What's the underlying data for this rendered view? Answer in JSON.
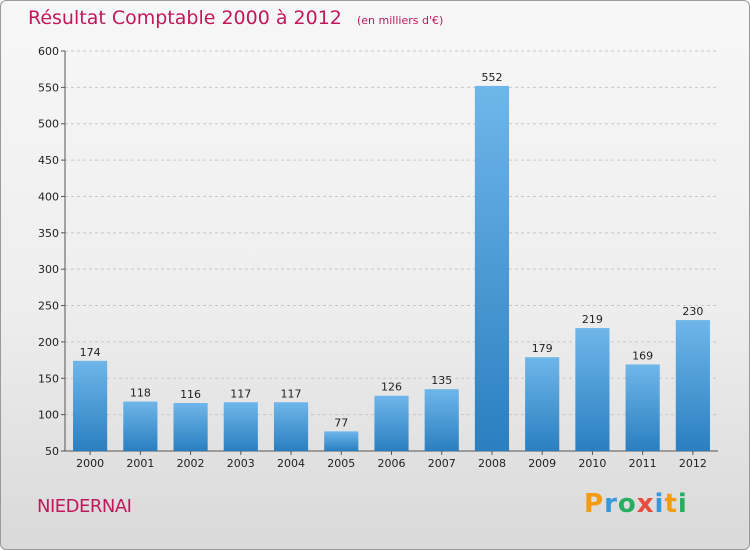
{
  "header": {
    "title": "Résultat Comptable 2000 à 2012",
    "unit": "(en milliers d'€)"
  },
  "footer": {
    "commune": "NIEDERNAI",
    "logo_letters": [
      "P",
      "r",
      "o",
      "x",
      "i",
      "t",
      "i"
    ],
    "logo_colors": [
      "#f39c12",
      "#3498db",
      "#27ae60",
      "#e74c3c",
      "#3498db",
      "#f39c12",
      "#27ae60"
    ]
  },
  "colors": {
    "bar_light": "#6fb6ea",
    "bar_dark": "#2a7fc0",
    "accent": "#c2185b",
    "grid": "#c8c8c8"
  },
  "chart_data": {
    "type": "bar",
    "title": "Résultat Comptable 2000 à 2012",
    "subtitle": "(en milliers d'€)",
    "xlabel": "",
    "ylabel": "",
    "categories": [
      "2000",
      "2001",
      "2002",
      "2003",
      "2004",
      "2005",
      "2006",
      "2007",
      "2008",
      "2009",
      "2010",
      "2011",
      "2012"
    ],
    "values": [
      174,
      118,
      116,
      117,
      117,
      77,
      126,
      135,
      552,
      179,
      219,
      169,
      230
    ],
    "data_labels": [
      "174",
      "118",
      "116",
      "117",
      "117",
      "77",
      "126",
      "135",
      "552",
      "179",
      "219",
      "169",
      "230"
    ],
    "ylim": [
      50,
      600
    ],
    "yticks": [
      50,
      100,
      150,
      200,
      250,
      300,
      350,
      400,
      450,
      500,
      550,
      600
    ],
    "ytick_labels": [
      "50",
      "100",
      "150",
      "200",
      "250",
      "300",
      "350",
      "400",
      "450",
      "500",
      "550",
      "600"
    ],
    "grid": true,
    "grid_style": "dashed-horizontal"
  }
}
